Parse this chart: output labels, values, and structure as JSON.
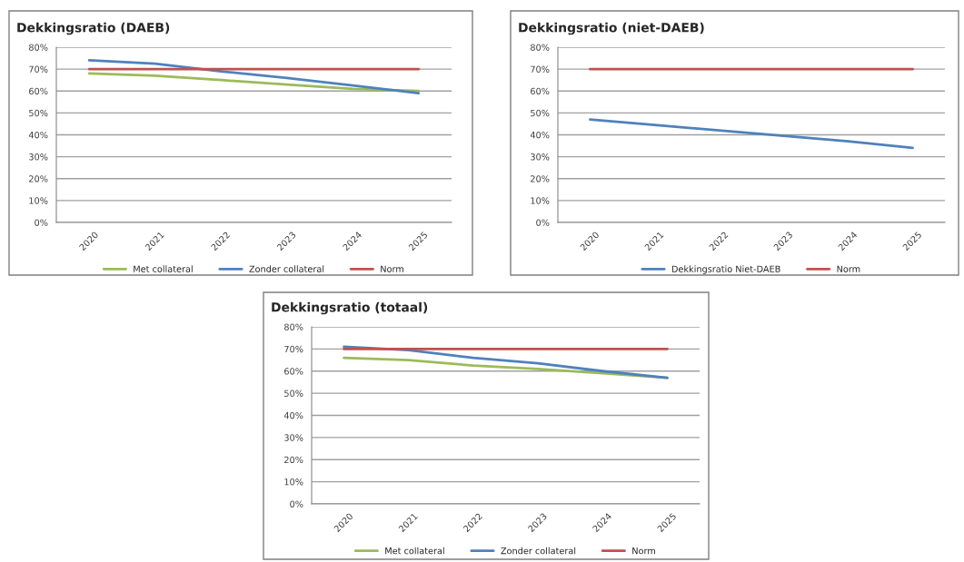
{
  "chart_data": [
    {
      "type": "line",
      "title": "Dekkingsratio (DAEB)",
      "categories": [
        "2020",
        "2021",
        "2022",
        "2023",
        "2024",
        "2025"
      ],
      "ylim": [
        0,
        80
      ],
      "yticks": [
        {
          "value": 0,
          "label": "0%"
        },
        {
          "value": 10,
          "label": "10%"
        },
        {
          "value": 20,
          "label": "20%"
        },
        {
          "value": 30,
          "label": "30%"
        },
        {
          "value": 40,
          "label": "40%"
        },
        {
          "value": 50,
          "label": "50%"
        },
        {
          "value": 60,
          "label": "60%"
        },
        {
          "value": 70,
          "label": "70%"
        },
        {
          "value": 80,
          "label": "80%"
        }
      ],
      "grid": "y",
      "legend": "bottom",
      "marker": "none",
      "series": [
        {
          "name": "Met collateral",
          "color": "#9bbb59",
          "values": [
            68,
            67,
            65,
            63,
            61,
            60
          ]
        },
        {
          "name": "Zonder collateral",
          "color": "#4f81bd",
          "values": [
            74,
            72.5,
            69,
            66,
            62.5,
            59
          ]
        },
        {
          "name": "Norm",
          "color": "#c0504d",
          "values": [
            70,
            70,
            70,
            70,
            70,
            70
          ]
        }
      ]
    },
    {
      "type": "line",
      "title": "Dekkingsratio (niet-DAEB)",
      "categories": [
        "2020",
        "2021",
        "2022",
        "2023",
        "2024",
        "2025"
      ],
      "ylim": [
        0,
        80
      ],
      "yticks": [
        {
          "value": 0,
          "label": "0%"
        },
        {
          "value": 10,
          "label": "10%"
        },
        {
          "value": 20,
          "label": "20%"
        },
        {
          "value": 30,
          "label": "30%"
        },
        {
          "value": 40,
          "label": "40%"
        },
        {
          "value": 50,
          "label": "50%"
        },
        {
          "value": 60,
          "label": "60%"
        },
        {
          "value": 70,
          "label": "70%"
        },
        {
          "value": 80,
          "label": "80%"
        }
      ],
      "grid": "y",
      "legend": "bottom",
      "marker": "none",
      "series": [
        {
          "name": "Dekkingsratio Niet-DAEB",
          "color": "#4f81bd",
          "values": [
            47,
            44.5,
            42,
            39.5,
            37,
            34
          ]
        },
        {
          "name": "Norm",
          "color": "#c0504d",
          "values": [
            70,
            70,
            70,
            70,
            70,
            70
          ]
        }
      ]
    },
    {
      "type": "line",
      "title": "Dekkingsratio (totaal)",
      "categories": [
        "2020",
        "2021",
        "2022",
        "2023",
        "2024",
        "2025"
      ],
      "ylim": [
        0,
        80
      ],
      "yticks": [
        {
          "value": 0,
          "label": "0%"
        },
        {
          "value": 10,
          "label": "10%"
        },
        {
          "value": 20,
          "label": "20%"
        },
        {
          "value": 30,
          "label": "30%"
        },
        {
          "value": 40,
          "label": "40%"
        },
        {
          "value": 50,
          "label": "50%"
        },
        {
          "value": 60,
          "label": "60%"
        },
        {
          "value": 70,
          "label": "70%"
        },
        {
          "value": 80,
          "label": "80%"
        }
      ],
      "grid": "y",
      "legend": "bottom",
      "marker": "none",
      "series": [
        {
          "name": "Met collateral",
          "color": "#9bbb59",
          "values": [
            66,
            65,
            62.5,
            61,
            59,
            57
          ]
        },
        {
          "name": "Zonder collateral",
          "color": "#4f81bd",
          "values": [
            71,
            69.5,
            66,
            63.5,
            60,
            57
          ]
        },
        {
          "name": "Norm",
          "color": "#c0504d",
          "values": [
            70,
            70,
            70,
            70,
            70,
            70
          ]
        }
      ]
    }
  ]
}
